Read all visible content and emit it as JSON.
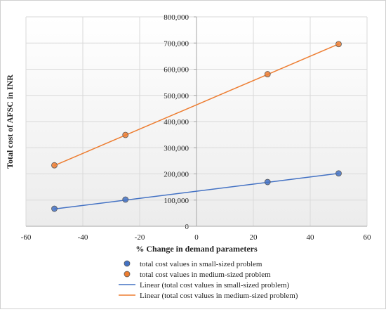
{
  "chart_data": {
    "type": "scatter",
    "xlabel": "% Change in demand parameters",
    "ylabel": "Total cost of AFSC in INR",
    "xlim": [
      -60,
      60
    ],
    "ylim": [
      0,
      800000
    ],
    "x_ticks": [
      -60,
      -40,
      -20,
      0,
      20,
      40,
      60
    ],
    "y_ticks": [
      0,
      100000,
      200000,
      300000,
      400000,
      500000,
      600000,
      700000,
      800000
    ],
    "y_tick_labels": [
      "0",
      "100,000",
      "200,000",
      "300,000",
      "400,000",
      "500,000",
      "600,000",
      "700,000",
      "800,000"
    ],
    "grid": true,
    "legend_position": "bottom",
    "series": [
      {
        "name": "total cost values in small-sized problem",
        "kind": "markers",
        "color": "#4472C4",
        "x": [
          -50,
          -25,
          25,
          50
        ],
        "y": [
          67000,
          102000,
          169000,
          202000
        ]
      },
      {
        "name": "total cost values in medium-sized problem",
        "kind": "markers",
        "color": "#ED7D31",
        "x": [
          -50,
          -25,
          25,
          50
        ],
        "y": [
          233000,
          349000,
          581000,
          696000
        ]
      },
      {
        "name": "Linear (total cost values in small-sized problem)",
        "kind": "trendline",
        "color": "#4472C4",
        "x": [
          -50,
          50
        ],
        "y": [
          66000,
          202000
        ]
      },
      {
        "name": "Linear (total cost values in medium-sized problem)",
        "kind": "trendline",
        "color": "#ED7D31",
        "x": [
          -50,
          50
        ],
        "y": [
          232000,
          696000
        ]
      }
    ]
  }
}
